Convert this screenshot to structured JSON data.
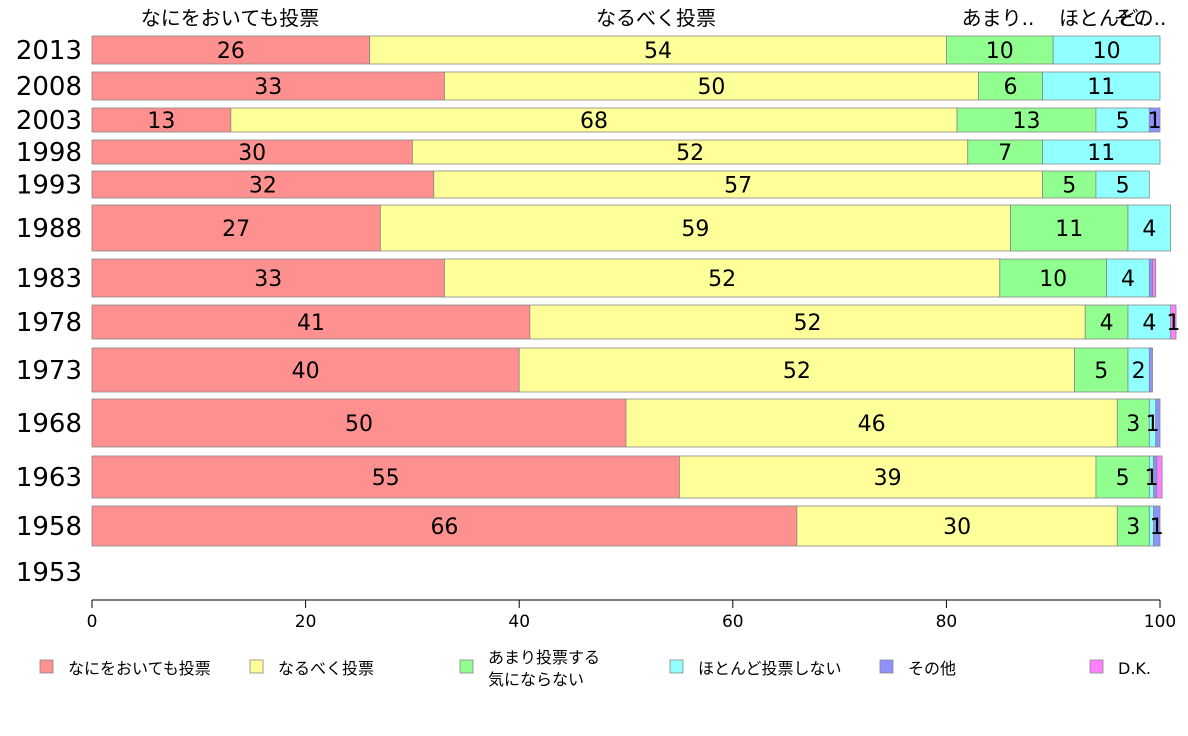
{
  "chart_data": {
    "type": "bar",
    "orientation": "horizontal",
    "stacked": true,
    "title": "",
    "xlabel": "",
    "ylabel": "",
    "xlim": [
      0,
      100
    ],
    "x_ticks": [
      "0",
      "20",
      "40",
      "60",
      "80",
      "100"
    ],
    "categories": [
      "2013",
      "2008",
      "2003",
      "1998",
      "1993",
      "1988",
      "1983",
      "1978",
      "1973",
      "1968",
      "1963",
      "1958",
      "1953"
    ],
    "top_labels": [
      "なにをおいても投票",
      "なるべく投票",
      "あまり..",
      "ほとんど..",
      "その.."
    ],
    "legend_position": "bottom",
    "series": [
      {
        "name": "なにをおいても投票",
        "color": "#ff9090",
        "values": [
          26,
          33,
          13,
          30,
          32,
          27,
          33,
          41,
          40,
          50,
          55,
          66,
          null
        ]
      },
      {
        "name": "なるべく投票",
        "color": "#ffff99",
        "values": [
          54,
          50,
          68,
          52,
          57,
          59,
          52,
          52,
          52,
          46,
          39,
          30,
          null
        ]
      },
      {
        "name": "あまり投票する気にならない",
        "color": "#90ff90",
        "values": [
          10,
          6,
          13,
          7,
          5,
          11,
          10,
          4,
          5,
          3,
          5,
          3,
          null
        ]
      },
      {
        "name": "ほとんど投票しない",
        "color": "#90ffff",
        "values": [
          10,
          11,
          5,
          11,
          5,
          4,
          4,
          4,
          2,
          0.6,
          0.4,
          0.4,
          null
        ]
      },
      {
        "name": "その他",
        "color": "#9090ff",
        "values": [
          0,
          0,
          1,
          0,
          0,
          0,
          0.3,
          0,
          0.3,
          0.4,
          0.3,
          0.6,
          null
        ]
      },
      {
        "name": "D.K.",
        "color": "#ff80ff",
        "values": [
          0,
          0,
          0,
          0,
          0,
          0,
          0.3,
          0.5,
          0,
          0,
          0.5,
          0,
          null
        ]
      }
    ],
    "value_labels": [
      [
        "26",
        "54",
        "10",
        "10",
        "",
        ""
      ],
      [
        "33",
        "50",
        "6",
        "11",
        "",
        ""
      ],
      [
        "13",
        "68",
        "13",
        "5",
        "1",
        ""
      ],
      [
        "30",
        "52",
        "7",
        "11",
        "",
        ""
      ],
      [
        "32",
        "57",
        "5",
        "5",
        "",
        ""
      ],
      [
        "27",
        "59",
        "11",
        "4",
        "",
        ""
      ],
      [
        "33",
        "52",
        "10",
        "4",
        "",
        ""
      ],
      [
        "41",
        "52",
        "4",
        "4",
        "",
        "1"
      ],
      [
        "40",
        "52",
        "5",
        "2",
        "",
        ""
      ],
      [
        "50",
        "46",
        "3",
        "1",
        "",
        ""
      ],
      [
        "55",
        "39",
        "5",
        "1",
        "",
        ""
      ],
      [
        "66",
        "30",
        "3",
        "",
        "1",
        ""
      ],
      [
        "",
        "",
        "",
        "",
        "",
        ""
      ]
    ],
    "legend": [
      {
        "label": "なにをおいても投票",
        "color": "#ff9090"
      },
      {
        "label": "なるべく投票",
        "color": "#ffff99"
      },
      {
        "label": "あまり投票する",
        "label2": "気にならない",
        "color": "#90ff90"
      },
      {
        "label": "ほとんど投票しない",
        "color": "#90ffff"
      },
      {
        "label": "その他",
        "color": "#9090ff"
      },
      {
        "label": "D.K.",
        "color": "#ff80ff"
      }
    ]
  }
}
